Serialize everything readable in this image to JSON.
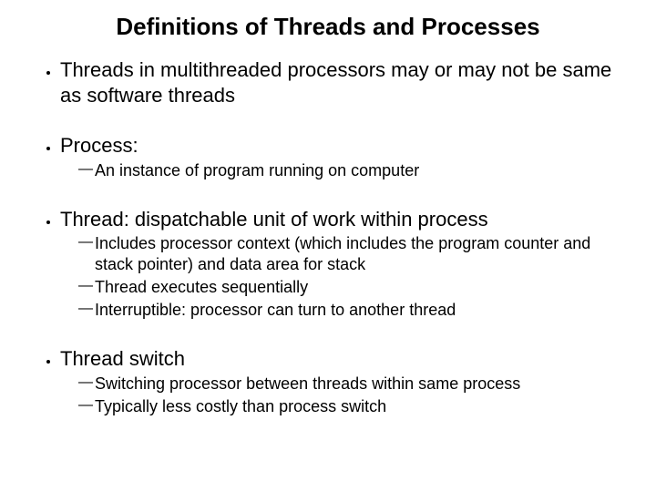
{
  "slide": {
    "background_color": "#ffffff",
    "text_color": "#000000",
    "font_family": "Comic Sans MS",
    "title": {
      "text": "Definitions of Threads and Processes",
      "fontsize": 26,
      "weight": "bold",
      "align": "center"
    },
    "bullets": [
      {
        "text": "Threads in multithreaded processors may or may not be same as software threads",
        "fontsize": 22,
        "sub": []
      },
      {
        "text": "Process:",
        "fontsize": 22,
        "sub": [
          {
            "text": "An instance of program running on computer",
            "fontsize": 18
          }
        ]
      },
      {
        "text": "Thread: dispatchable unit of work within process",
        "fontsize": 22,
        "sub": [
          {
            "text": "Includes processor context (which includes the program counter and stack pointer) and data area for stack",
            "fontsize": 18
          },
          {
            "text": "Thread executes sequentially",
            "fontsize": 18
          },
          {
            "text": "Interruptible: processor can turn to another thread",
            "fontsize": 18
          }
        ]
      },
      {
        "text": "Thread switch",
        "fontsize": 22,
        "sub": [
          {
            "text": "Switching processor between threads within same process",
            "fontsize": 18
          },
          {
            "text": "Typically less costly than process switch",
            "fontsize": 18
          }
        ]
      }
    ]
  }
}
